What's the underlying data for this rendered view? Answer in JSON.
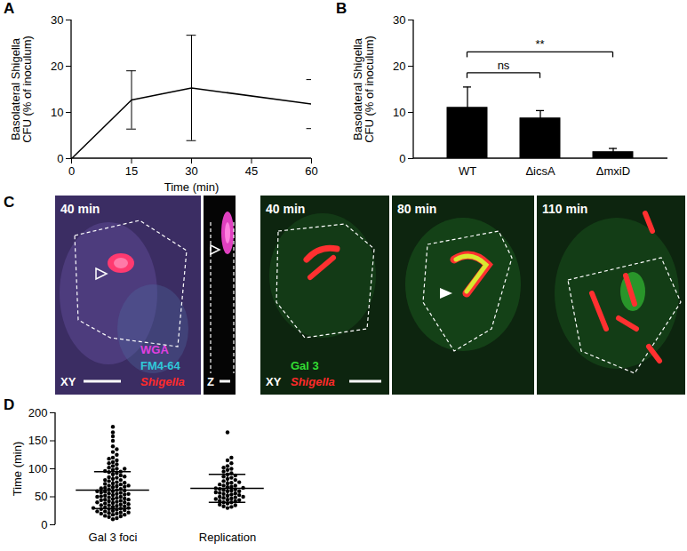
{
  "chart_data": [
    {
      "type": "line",
      "title": "A",
      "x": [
        0,
        15,
        30,
        60
      ],
      "values": [
        0,
        12.7,
        15.3,
        11.8
      ],
      "errors": [
        0,
        6.3,
        11.4,
        5.3
      ],
      "xlabel": "Time (min)",
      "ylabel": [
        "Basolateral Shigella",
        "CFU (% of inoculum)"
      ],
      "xlim": [
        0,
        60
      ],
      "xticks": [
        0,
        15,
        30,
        45,
        60
      ],
      "ylim": [
        0,
        30
      ],
      "yticks": [
        0,
        10,
        20,
        30
      ],
      "color": "#000000"
    },
    {
      "type": "bar",
      "title": "B",
      "categories": [
        "WT",
        "ΔicsA",
        "ΔmxiD"
      ],
      "values": [
        11,
        8.7,
        1.4
      ],
      "errors": [
        4.5,
        1.7,
        0.8
      ],
      "ylabel": [
        "Basolateral Shigella",
        "CFU (% of inoculum)"
      ],
      "ylim": [
        0,
        30
      ],
      "yticks": [
        0,
        10,
        20,
        30
      ],
      "color": "#000000",
      "comparisons": [
        {
          "from": "WT",
          "to": "ΔicsA",
          "label": "ns"
        },
        {
          "from": "WT",
          "to": "ΔmxiD",
          "label": "**"
        }
      ]
    },
    {
      "type": "image",
      "title": "C",
      "panels": [
        {
          "time": "40 min",
          "view": "XY",
          "channels": [
            {
              "name": "WGA",
              "color": "#e040e0"
            },
            {
              "name": "FM4-64",
              "color": "#30c8d8"
            },
            {
              "name": "Shigella",
              "color": "#ff2a2a"
            }
          ]
        },
        {
          "view": "Z"
        },
        {
          "time": "40 min",
          "view": "XY",
          "channels": [
            {
              "name": "Gal 3",
              "color": "#33dd33"
            },
            {
              "name": "Shigella",
              "color": "#ff2a2a"
            }
          ]
        },
        {
          "time": "80 min"
        },
        {
          "time": "110 min"
        }
      ]
    },
    {
      "type": "scatter",
      "title": "D",
      "categories": [
        "Gal 3 foci",
        "Replication"
      ],
      "values": [
        [
          10,
          12,
          14,
          15,
          16,
          18,
          18,
          20,
          20,
          21,
          22,
          22,
          24,
          24,
          25,
          26,
          27,
          28,
          28,
          29,
          30,
          30,
          31,
          32,
          33,
          34,
          35,
          35,
          36,
          37,
          38,
          39,
          40,
          40,
          41,
          42,
          43,
          44,
          45,
          45,
          46,
          47,
          48,
          49,
          50,
          50,
          51,
          52,
          53,
          54,
          55,
          55,
          56,
          57,
          58,
          59,
          60,
          60,
          61,
          62,
          63,
          64,
          65,
          66,
          67,
          68,
          69,
          70,
          70,
          72,
          73,
          74,
          75,
          76,
          78,
          80,
          80,
          82,
          84,
          85,
          86,
          88,
          90,
          92,
          94,
          95,
          96,
          98,
          100,
          100,
          102,
          105,
          108,
          110,
          112,
          115,
          118,
          120,
          125,
          130,
          135,
          140,
          150,
          158,
          165,
          175
        ],
        [
          30,
          32,
          33,
          35,
          36,
          38,
          40,
          40,
          42,
          43,
          44,
          45,
          46,
          47,
          48,
          49,
          50,
          50,
          52,
          53,
          54,
          55,
          56,
          57,
          58,
          60,
          60,
          61,
          62,
          63,
          64,
          65,
          66,
          67,
          68,
          70,
          70,
          72,
          74,
          75,
          76,
          78,
          80,
          82,
          84,
          86,
          88,
          90,
          92,
          95,
          98,
          100,
          102,
          105,
          110,
          115,
          120,
          165
        ]
      ],
      "mean": [
        62,
        65
      ],
      "sd": [
        33,
        25
      ],
      "ylabel": "Time (min)",
      "ylim": [
        0,
        200
      ],
      "yticks": [
        0,
        50,
        100,
        150,
        200
      ],
      "color": "#000000"
    }
  ]
}
